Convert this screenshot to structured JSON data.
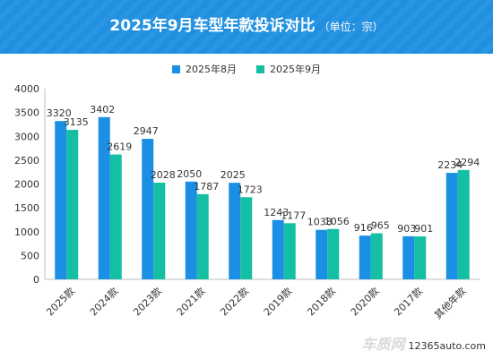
{
  "header": {
    "title": "2025年9月车型年款投诉对比",
    "subtitle": "（单位：宗）"
  },
  "watermark": {
    "brand": "车质网",
    "url": "12365auto.com"
  },
  "colors": {
    "header_bg": "#1f8fe0",
    "series_aug": "#1a8fe3",
    "series_sep": "#14bfa3"
  },
  "chart_data": {
    "type": "bar",
    "categories": [
      "2025款",
      "2024款",
      "2023款",
      "2021款",
      "2022款",
      "2019款",
      "2018款",
      "2020款",
      "2017款",
      "其他年款"
    ],
    "series": [
      {
        "name": "2025年8月",
        "values": [
          3320,
          3402,
          2947,
          2050,
          2025,
          1243,
          1038,
          916,
          903,
          2234
        ]
      },
      {
        "name": "2025年9月",
        "values": [
          3135,
          2619,
          2028,
          1787,
          1723,
          1177,
          1056,
          965,
          901,
          2294
        ]
      }
    ],
    "ylim": [
      0,
      4000
    ],
    "yticks": [
      "0",
      "500",
      "1000",
      "1500",
      "2000",
      "2500",
      "3000",
      "3500",
      "4000"
    ],
    "title": "",
    "xlabel": "",
    "ylabel": "",
    "grid": false,
    "legend_position": "top-center"
  }
}
